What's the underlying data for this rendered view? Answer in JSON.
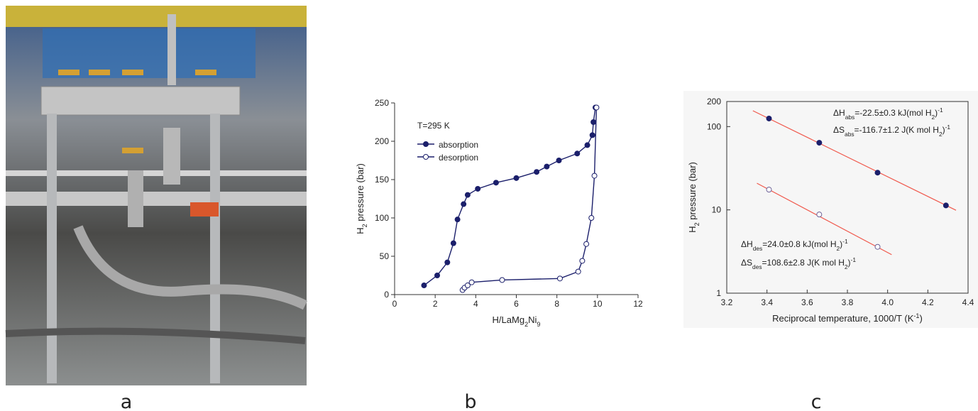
{
  "panel_labels": [
    "a",
    "b",
    "c"
  ],
  "chart_data": [
    {
      "type": "line",
      "annotation": "T=295 K",
      "xlabel": [
        {
          "text": "H/LaMg"
        },
        {
          "text": "2",
          "sub": true
        },
        {
          "text": "Ni"
        },
        {
          "text": "9",
          "sub": true
        }
      ],
      "ylabel": [
        {
          "text": "H"
        },
        {
          "text": "2",
          "sub": true
        },
        {
          "text": " pressure (bar)"
        }
      ],
      "xlim": [
        0,
        12
      ],
      "xticks": [
        0,
        2,
        4,
        6,
        8,
        10,
        12
      ],
      "ylim": [
        0,
        250
      ],
      "yticks": [
        0,
        50,
        100,
        150,
        200,
        250
      ],
      "legend": "upper left",
      "series": [
        {
          "name": "absorption",
          "color": "#1b1f6b",
          "marker": "filled",
          "x": [
            1.45,
            2.1,
            2.6,
            2.9,
            3.1,
            3.4,
            3.6,
            4.1,
            5.0,
            6.0,
            7.0,
            7.5,
            8.1,
            9.0,
            9.5,
            9.75,
            9.8,
            9.9
          ],
          "values": [
            12,
            25,
            42,
            67,
            98,
            118,
            130,
            138,
            146,
            152,
            160,
            167,
            175,
            184,
            195,
            208,
            225,
            244
          ]
        },
        {
          "name": "desorption",
          "color": "#1b1f6b",
          "marker": "open",
          "x": [
            3.35,
            3.45,
            3.6,
            3.8,
            5.3,
            8.15,
            9.05,
            9.25,
            9.45,
            9.7,
            9.85,
            9.95
          ],
          "values": [
            6,
            9,
            12,
            16,
            19,
            21,
            30,
            44,
            66,
            100,
            155,
            244
          ]
        }
      ]
    },
    {
      "type": "scatter",
      "log_y": true,
      "xlabel": [
        {
          "text": "Reciprocal temperature, 1000/T (K"
        },
        {
          "text": "-1",
          "sup": true
        },
        {
          "text": ")"
        }
      ],
      "ylabel": [
        {
          "text": "H"
        },
        {
          "text": "2",
          "sub": true
        },
        {
          "text": " pressure (bar)"
        }
      ],
      "xlim": [
        3.2,
        4.4
      ],
      "xticks": [
        3.2,
        3.4,
        3.6,
        3.8,
        {
          "value": 4,
          "label": "4.0"
        },
        4.2,
        4.4
      ],
      "ylim": [
        1,
        200
      ],
      "yticks": [
        1,
        10,
        100,
        200
      ],
      "series": [
        {
          "color": "#1b1f6b",
          "marker": "filled",
          "x": [
            3.41,
            3.66,
            3.95,
            4.29
          ],
          "values": [
            125,
            64,
            28,
            11.3
          ]
        },
        {
          "color": "#6a5f95",
          "marker": "open",
          "x": [
            3.41,
            3.66,
            3.95
          ],
          "values": [
            17.5,
            8.8,
            3.6
          ]
        }
      ],
      "fits": [
        {
          "color": "#f0584c",
          "x": [
            3.33,
            4.34
          ],
          "values": [
            155,
            9.9
          ]
        },
        {
          "color": "#f0584c",
          "x": [
            3.35,
            4.02
          ],
          "values": [
            20.9,
            2.9
          ]
        }
      ],
      "annotations": [
        [
          {
            "text": "ΔH"
          },
          {
            "text": "abs",
            "sub": true
          },
          {
            "text": "=-22.5±0.3 kJ(mol H"
          },
          {
            "text": "2",
            "sub": true
          },
          {
            "text": ")"
          },
          {
            "text": "-1",
            "sup": true
          }
        ],
        [
          {
            "text": "ΔS"
          },
          {
            "text": "abs",
            "sub": true
          },
          {
            "text": "=-116.7±1.2 J(K mol H"
          },
          {
            "text": "2",
            "sub": true
          },
          {
            "text": ")"
          },
          {
            "text": "-1",
            "sup": true
          }
        ],
        [
          {
            "text": "ΔH"
          },
          {
            "text": "des",
            "sub": true
          },
          {
            "text": "=24.0±0.8 kJ(mol H"
          },
          {
            "text": "2",
            "sub": true
          },
          {
            "text": ")"
          },
          {
            "text": "-1",
            "sup": true
          }
        ],
        [
          {
            "text": "ΔS"
          },
          {
            "text": "des",
            "sub": true
          },
          {
            "text": "=108.6±2.8 J(K mol H"
          },
          {
            "text": "2",
            "sub": true
          },
          {
            "text": ")"
          },
          {
            "text": "-1",
            "sup": true
          }
        ]
      ]
    }
  ]
}
